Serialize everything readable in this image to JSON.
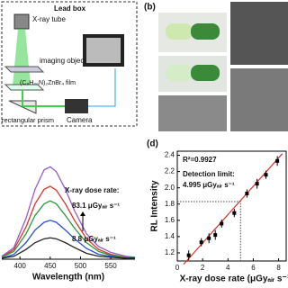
{
  "panel_a": {
    "title": "Lead box",
    "labels": [
      "X-ray tube",
      "imaging objects",
      "(C₈H₂₀N)₂ZnBr₄ film",
      "rectangular prism",
      "Camera"
    ]
  },
  "panel_b": {
    "label": "(b)"
  },
  "chart_data": [
    {
      "type": "line",
      "xlabel": "Wavelength (nm)",
      "annotations": [
        "X-ray dose rate:",
        "83.1 μGyₐᵢᵣ s⁻¹",
        "8.8 μGyₐᵢᵣ s⁻¹"
      ],
      "x": [
        370,
        390,
        410,
        425,
        440,
        450,
        460,
        475,
        490,
        510,
        530,
        550,
        575,
        590
      ],
      "xlim": [
        370,
        590
      ],
      "ylim": [
        0,
        1
      ],
      "xticks": [
        400,
        450,
        500,
        550
      ],
      "series": [
        {
          "color": "#9b59c8",
          "values": [
            0.03,
            0.12,
            0.42,
            0.72,
            0.92,
            0.95,
            0.9,
            0.72,
            0.5,
            0.26,
            0.13,
            0.07,
            0.03,
            0.02
          ]
        },
        {
          "color": "#e0302a",
          "values": [
            0.02,
            0.1,
            0.33,
            0.57,
            0.72,
            0.75,
            0.71,
            0.57,
            0.4,
            0.21,
            0.1,
            0.05,
            0.02,
            0.02
          ]
        },
        {
          "color": "#2a9a3a",
          "values": [
            0.02,
            0.08,
            0.26,
            0.45,
            0.57,
            0.6,
            0.57,
            0.45,
            0.32,
            0.17,
            0.08,
            0.04,
            0.02,
            0.01
          ]
        },
        {
          "color": "#2a4fd0",
          "values": [
            0.01,
            0.05,
            0.17,
            0.3,
            0.38,
            0.4,
            0.38,
            0.3,
            0.21,
            0.11,
            0.05,
            0.03,
            0.01,
            0.01
          ]
        },
        {
          "color": "#222222",
          "values": [
            0.01,
            0.03,
            0.1,
            0.17,
            0.21,
            0.22,
            0.21,
            0.17,
            0.12,
            0.06,
            0.03,
            0.02,
            0.01,
            0.01
          ]
        }
      ]
    },
    {
      "type": "scatter",
      "label": "(d)",
      "xlabel": "X-ray dose rate (μGyₐᵢᵣ s⁻¹)",
      "ylabel": "RL Intensity",
      "annotations": [
        "R²=0.9927",
        "Detection limit:",
        "4.995 μGyₐᵢᵣ s⁻¹"
      ],
      "xlim": [
        0,
        8.6
      ],
      "ylim": [
        1.1,
        2.45
      ],
      "xticks": [
        0,
        2,
        4,
        6,
        8
      ],
      "yticks": [
        1.2,
        1.4,
        1.6,
        1.8,
        {
          "value": 2,
          "label": "2.0"
        },
        2.2,
        2.4
      ],
      "x": [
        0.9,
        1.9,
        2.5,
        3.0,
        3.5,
        4.5,
        5.5,
        6.3,
        7.0,
        7.9
      ],
      "values": [
        1.17,
        1.33,
        1.38,
        1.42,
        1.56,
        1.69,
        1.93,
        2.05,
        2.16,
        2.33
      ],
      "errors": [
        0.06,
        0.05,
        0.06,
        0.06,
        0.05,
        0.05,
        0.05,
        0.06,
        0.05,
        0.06
      ],
      "fit": {
        "color": "#e0302a",
        "x": [
          0.5,
          8.3
        ],
        "values": [
          1.06,
          2.42
        ]
      },
      "detection_limit": {
        "x": 4.995,
        "y": 1.83
      }
    }
  ]
}
